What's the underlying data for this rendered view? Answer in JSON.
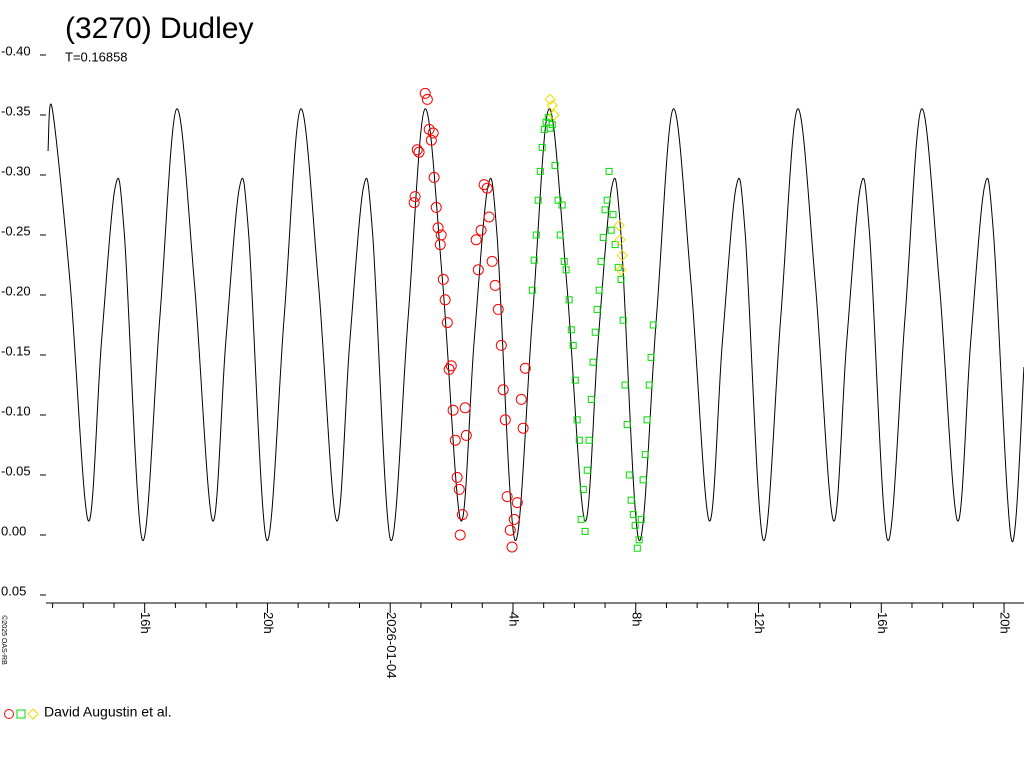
{
  "chart_data": {
    "type": "line",
    "title": "(3270) Dudley",
    "subtitle": "T=0.16858",
    "copyright": "©2025 OAS-RB",
    "legend_label": "David Augustin et al.",
    "xlim": [
      -11.15,
      20.65
    ],
    "ylim": [
      0.05,
      -0.4
    ],
    "yticks": [
      {
        "value": -0.4,
        "label": "-0.40"
      },
      -0.35,
      {
        "value": -0.3,
        "label": "-0.30"
      },
      -0.25,
      {
        "value": -0.2,
        "label": "-0.20"
      },
      -0.15,
      {
        "value": -0.1,
        "label": "-0.10"
      },
      -0.05,
      {
        "value": 0,
        "label": "0.00"
      },
      0.05
    ],
    "xticks": [
      {
        "value": -8,
        "label": "16h"
      },
      {
        "value": -4,
        "label": "20h"
      },
      {
        "value": 0,
        "label": "2026-01-04"
      },
      {
        "value": 4,
        "label": "4h"
      },
      {
        "value": 8,
        "label": "8h"
      },
      {
        "value": 12,
        "label": "12h"
      },
      {
        "value": 16,
        "label": "16h"
      },
      {
        "value": 20,
        "label": "20h"
      }
    ],
    "xminorticks": [
      -11,
      -10,
      -9,
      -7,
      -6,
      -5,
      -3,
      -2,
      -1,
      1,
      2,
      3,
      5,
      6,
      7,
      9,
      10,
      11,
      13,
      14,
      15,
      17,
      18,
      19
    ],
    "series": [
      {
        "type": "line",
        "color": "#000000",
        "x": [
          -11.15,
          -11.01,
          -10.43,
          -9.84,
          -9.41,
          -8.96,
          -8.66,
          -8.08,
          -7.51,
          -6.96,
          -6.38,
          -5.79,
          -5.36,
          -4.91,
          -4.61,
          -4.03,
          -3.46,
          -2.92,
          -2.34,
          -1.75,
          -1.32,
          -0.87,
          -0.57,
          0.01,
          0.58,
          1.13,
          1.71,
          2.3,
          2.73,
          3.18,
          3.48,
          4.06,
          4.63,
          5.17,
          5.75,
          6.34,
          6.77,
          7.22,
          7.52,
          8.1,
          8.67,
          9.22,
          9.8,
          10.39,
          10.82,
          11.27,
          11.57,
          12.15,
          12.72,
          13.27,
          13.85,
          14.44,
          14.87,
          15.32,
          15.62,
          16.2,
          16.77,
          17.31,
          17.89,
          18.48,
          18.91,
          19.36,
          19.66,
          20.24,
          20.65
        ],
        "values": [
          -0.32,
          -0.355,
          -0.21,
          -0.012,
          -0.16,
          -0.29,
          -0.25,
          0.004,
          -0.18,
          -0.355,
          -0.21,
          -0.012,
          -0.16,
          -0.29,
          -0.25,
          0.004,
          -0.18,
          -0.355,
          -0.21,
          -0.012,
          -0.16,
          -0.29,
          -0.25,
          0.004,
          -0.18,
          -0.355,
          -0.21,
          -0.012,
          -0.16,
          -0.29,
          -0.25,
          0.004,
          -0.18,
          -0.355,
          -0.21,
          -0.012,
          -0.16,
          -0.29,
          -0.25,
          0.004,
          -0.18,
          -0.355,
          -0.21,
          -0.012,
          -0.16,
          -0.29,
          -0.25,
          0.004,
          -0.18,
          -0.355,
          -0.21,
          -0.012,
          -0.16,
          -0.29,
          -0.25,
          0.004,
          -0.18,
          -0.355,
          -0.21,
          -0.012,
          -0.16,
          -0.29,
          -0.25,
          0.004,
          -0.14
        ]
      },
      {
        "type": "scatter",
        "marker": "circle",
        "color": "#ff0000",
        "x": [
          0.81,
          0.78,
          0.88,
          0.94,
          1.14,
          1.21,
          1.27,
          1.34,
          1.4,
          1.43,
          1.5,
          1.56,
          1.63,
          1.66,
          1.73,
          1.79,
          1.86,
          1.92,
          1.99,
          2.05,
          2.12,
          2.18,
          2.25,
          2.28,
          2.35,
          2.44,
          2.48,
          2.8,
          2.87,
          2.96,
          3.06,
          3.16,
          3.22,
          3.32,
          3.42,
          3.52,
          3.62,
          3.68,
          3.75,
          3.81,
          3.91,
          3.97,
          4.04,
          4.14,
          4.27,
          4.33,
          4.4
        ],
        "values": [
          -0.282,
          -0.277,
          -0.321,
          -0.319,
          -0.368,
          -0.363,
          -0.338,
          -0.329,
          -0.335,
          -0.298,
          -0.273,
          -0.256,
          -0.242,
          -0.25,
          -0.213,
          -0.196,
          -0.177,
          -0.138,
          -0.141,
          -0.104,
          -0.079,
          -0.048,
          -0.038,
          0,
          -0.017,
          -0.106,
          -0.083,
          -0.246,
          -0.221,
          -0.254,
          -0.292,
          -0.289,
          -0.265,
          -0.228,
          -0.208,
          -0.188,
          -0.158,
          -0.121,
          -0.096,
          -0.032,
          -0.004,
          0.01,
          -0.013,
          -0.027,
          -0.113,
          -0.089,
          -0.139
        ]
      },
      {
        "type": "scatter",
        "marker": "square",
        "color": "#00dd00",
        "x": [
          4.63,
          4.69,
          4.76,
          4.82,
          4.89,
          4.95,
          5.02,
          5.08,
          5.15,
          5.21,
          5.28,
          5.37,
          5.47,
          5.54,
          5.6,
          5.67,
          5.73,
          5.83,
          5.9,
          5.96,
          6.03,
          6.09,
          6.16,
          6.22,
          6.29,
          6.35,
          6.42,
          6.48,
          6.55,
          6.61,
          6.68,
          6.74,
          6.81,
          6.87,
          6.94,
          7,
          7.07,
          7.13,
          7.2,
          7.26,
          7.33,
          7.43,
          7.52,
          7.59,
          7.65,
          7.72,
          7.79,
          7.85,
          7.92,
          7.98,
          8.05,
          8.11,
          8.18,
          8.24,
          8.31,
          8.37,
          8.44,
          8.5,
          8.57
        ],
        "values": [
          -0.204,
          -0.229,
          -0.25,
          -0.279,
          -0.303,
          -0.323,
          -0.338,
          -0.344,
          -0.348,
          -0.339,
          -0.342,
          -0.308,
          -0.279,
          -0.25,
          -0.275,
          -0.228,
          -0.221,
          -0.196,
          -0.171,
          -0.158,
          -0.129,
          -0.096,
          -0.079,
          -0.013,
          -0.038,
          -0.003,
          -0.054,
          -0.079,
          -0.113,
          -0.144,
          -0.169,
          -0.188,
          -0.204,
          -0.228,
          -0.248,
          -0.271,
          -0.279,
          -0.303,
          -0.254,
          -0.267,
          -0.242,
          -0.223,
          -0.213,
          -0.179,
          -0.125,
          -0.092,
          -0.05,
          -0.029,
          -0.017,
          -0.008,
          0.011,
          0.004,
          -0.013,
          -0.046,
          -0.067,
          -0.096,
          -0.125,
          -0.148,
          -0.175
        ]
      },
      {
        "type": "scatter",
        "marker": "diamond",
        "color": "#eedd00",
        "x": [
          5.21,
          5.28,
          5.34,
          7.46,
          7.49,
          7.56,
          7.52
        ],
        "values": [
          -0.363,
          -0.358,
          -0.35,
          -0.258,
          -0.246,
          -0.233,
          -0.221
        ]
      }
    ]
  }
}
